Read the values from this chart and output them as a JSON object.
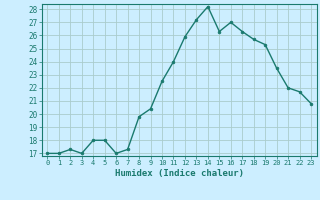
{
  "x": [
    0,
    1,
    2,
    3,
    4,
    5,
    6,
    7,
    8,
    9,
    10,
    11,
    12,
    13,
    14,
    15,
    16,
    17,
    18,
    19,
    20,
    21,
    22,
    23
  ],
  "y": [
    17.0,
    17.0,
    17.3,
    17.0,
    18.0,
    18.0,
    17.0,
    17.3,
    19.8,
    20.4,
    22.5,
    24.0,
    25.9,
    27.2,
    28.2,
    26.3,
    27.0,
    26.3,
    25.7,
    25.3,
    23.5,
    22.0,
    21.7,
    20.8
  ],
  "line_color": "#1a7a6e",
  "marker": "o",
  "marker_size": 2.0,
  "bg_color": "#cceeff",
  "grid_color": "#aacccc",
  "xlabel": "Humidex (Indice chaleur)",
  "ylim": [
    17,
    28
  ],
  "xlim": [
    -0.5,
    23.5
  ],
  "yticks": [
    17,
    18,
    19,
    20,
    21,
    22,
    23,
    24,
    25,
    26,
    27,
    28
  ],
  "xticks": [
    0,
    1,
    2,
    3,
    4,
    5,
    6,
    7,
    8,
    9,
    10,
    11,
    12,
    13,
    14,
    15,
    16,
    17,
    18,
    19,
    20,
    21,
    22,
    23
  ]
}
